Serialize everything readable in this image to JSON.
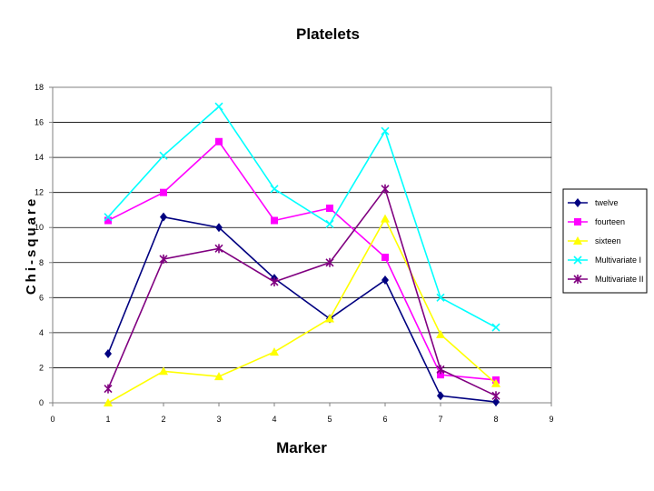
{
  "chart_data": {
    "type": "line",
    "title": "Platelets",
    "xlabel": "Marker",
    "ylabel": "Chi-square",
    "xlim": [
      0,
      9
    ],
    "ylim": [
      0,
      18
    ],
    "xticks": [
      0,
      1,
      2,
      3,
      4,
      5,
      6,
      7,
      8,
      9
    ],
    "yticks": [
      0,
      2,
      4,
      6,
      8,
      10,
      12,
      14,
      16,
      18
    ],
    "grid": "horizontal",
    "legend_position": "right",
    "x": [
      1,
      2,
      3,
      4,
      5,
      6,
      7,
      8
    ],
    "series": [
      {
        "name": "twelve",
        "color": "#000080",
        "marker": "diamond",
        "values": [
          2.8,
          10.6,
          10.0,
          7.1,
          4.8,
          7.0,
          0.4,
          0.05
        ]
      },
      {
        "name": "fourteen",
        "color": "#FF00FF",
        "marker": "square",
        "values": [
          10.4,
          12.0,
          14.9,
          10.4,
          11.1,
          8.3,
          1.6,
          1.3
        ]
      },
      {
        "name": "sixteen",
        "color": "#FFFF00",
        "marker": "triangle",
        "values": [
          0.0,
          1.8,
          1.5,
          2.9,
          4.8,
          10.5,
          3.9,
          1.1
        ]
      },
      {
        "name": "Multivariate I",
        "color": "#00FFFF",
        "marker": "x",
        "values": [
          10.6,
          14.1,
          16.9,
          12.2,
          10.2,
          15.5,
          6.0,
          4.3
        ]
      },
      {
        "name": "Multivariate II",
        "color": "#800080",
        "marker": "star",
        "values": [
          0.8,
          8.2,
          8.8,
          6.9,
          8.0,
          12.2,
          1.9,
          0.4
        ]
      }
    ]
  }
}
